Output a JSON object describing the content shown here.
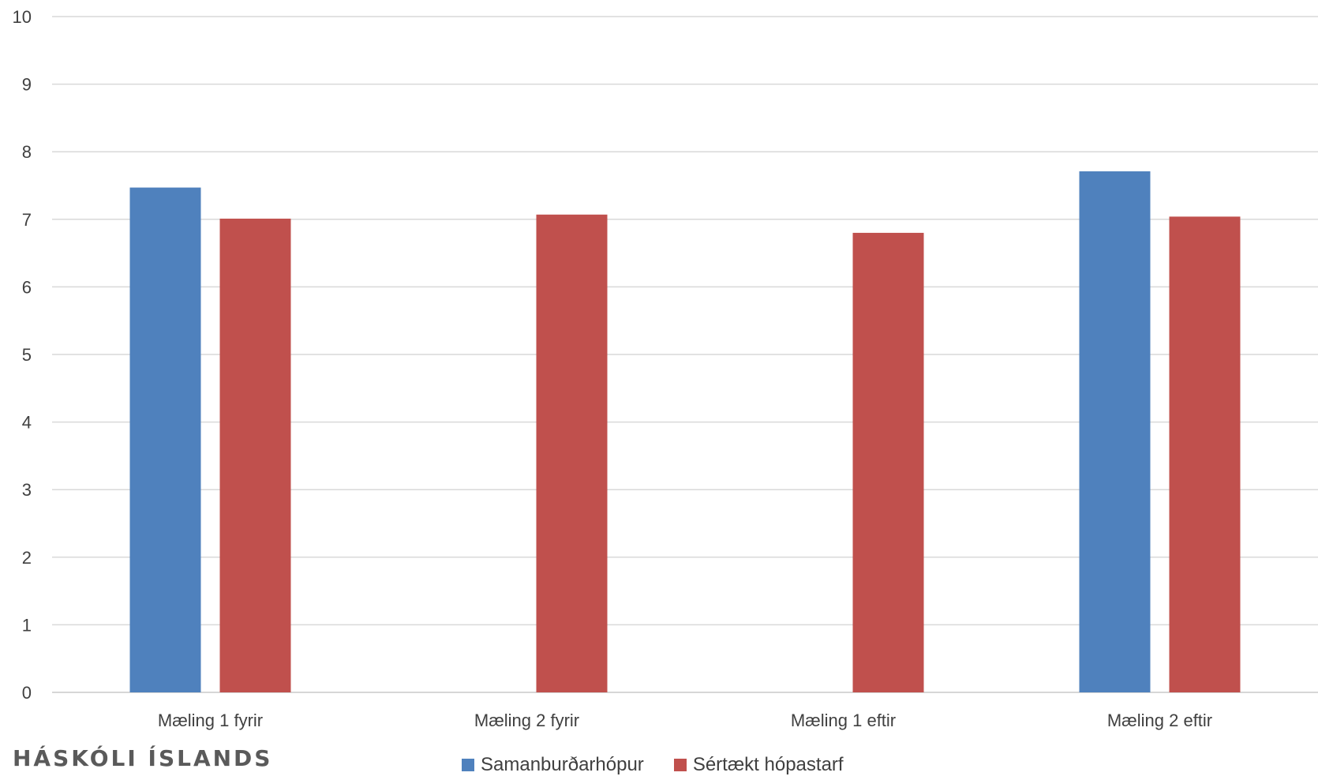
{
  "chart_data": {
    "type": "bar",
    "categories": [
      "Mæling 1 fyrir",
      "Mæling 2 fyrir",
      "Mæling 1 eftir",
      "Mæling 2 eftir"
    ],
    "series": [
      {
        "name": "Samanburðarhópur",
        "color": "#4F81BD",
        "values": [
          7.47,
          null,
          null,
          7.71
        ]
      },
      {
        "name": "Sértækt hópastarf",
        "color": "#C0504D",
        "values": [
          7.01,
          7.07,
          6.8,
          7.04
        ]
      }
    ],
    "ylim": [
      0,
      10
    ],
    "yticks": [
      0,
      1,
      2,
      3,
      4,
      5,
      6,
      7,
      8,
      9,
      10
    ],
    "grid": true,
    "legend_position": "bottom"
  },
  "logo_text": "HÁSKÓLI ÍSLANDS"
}
